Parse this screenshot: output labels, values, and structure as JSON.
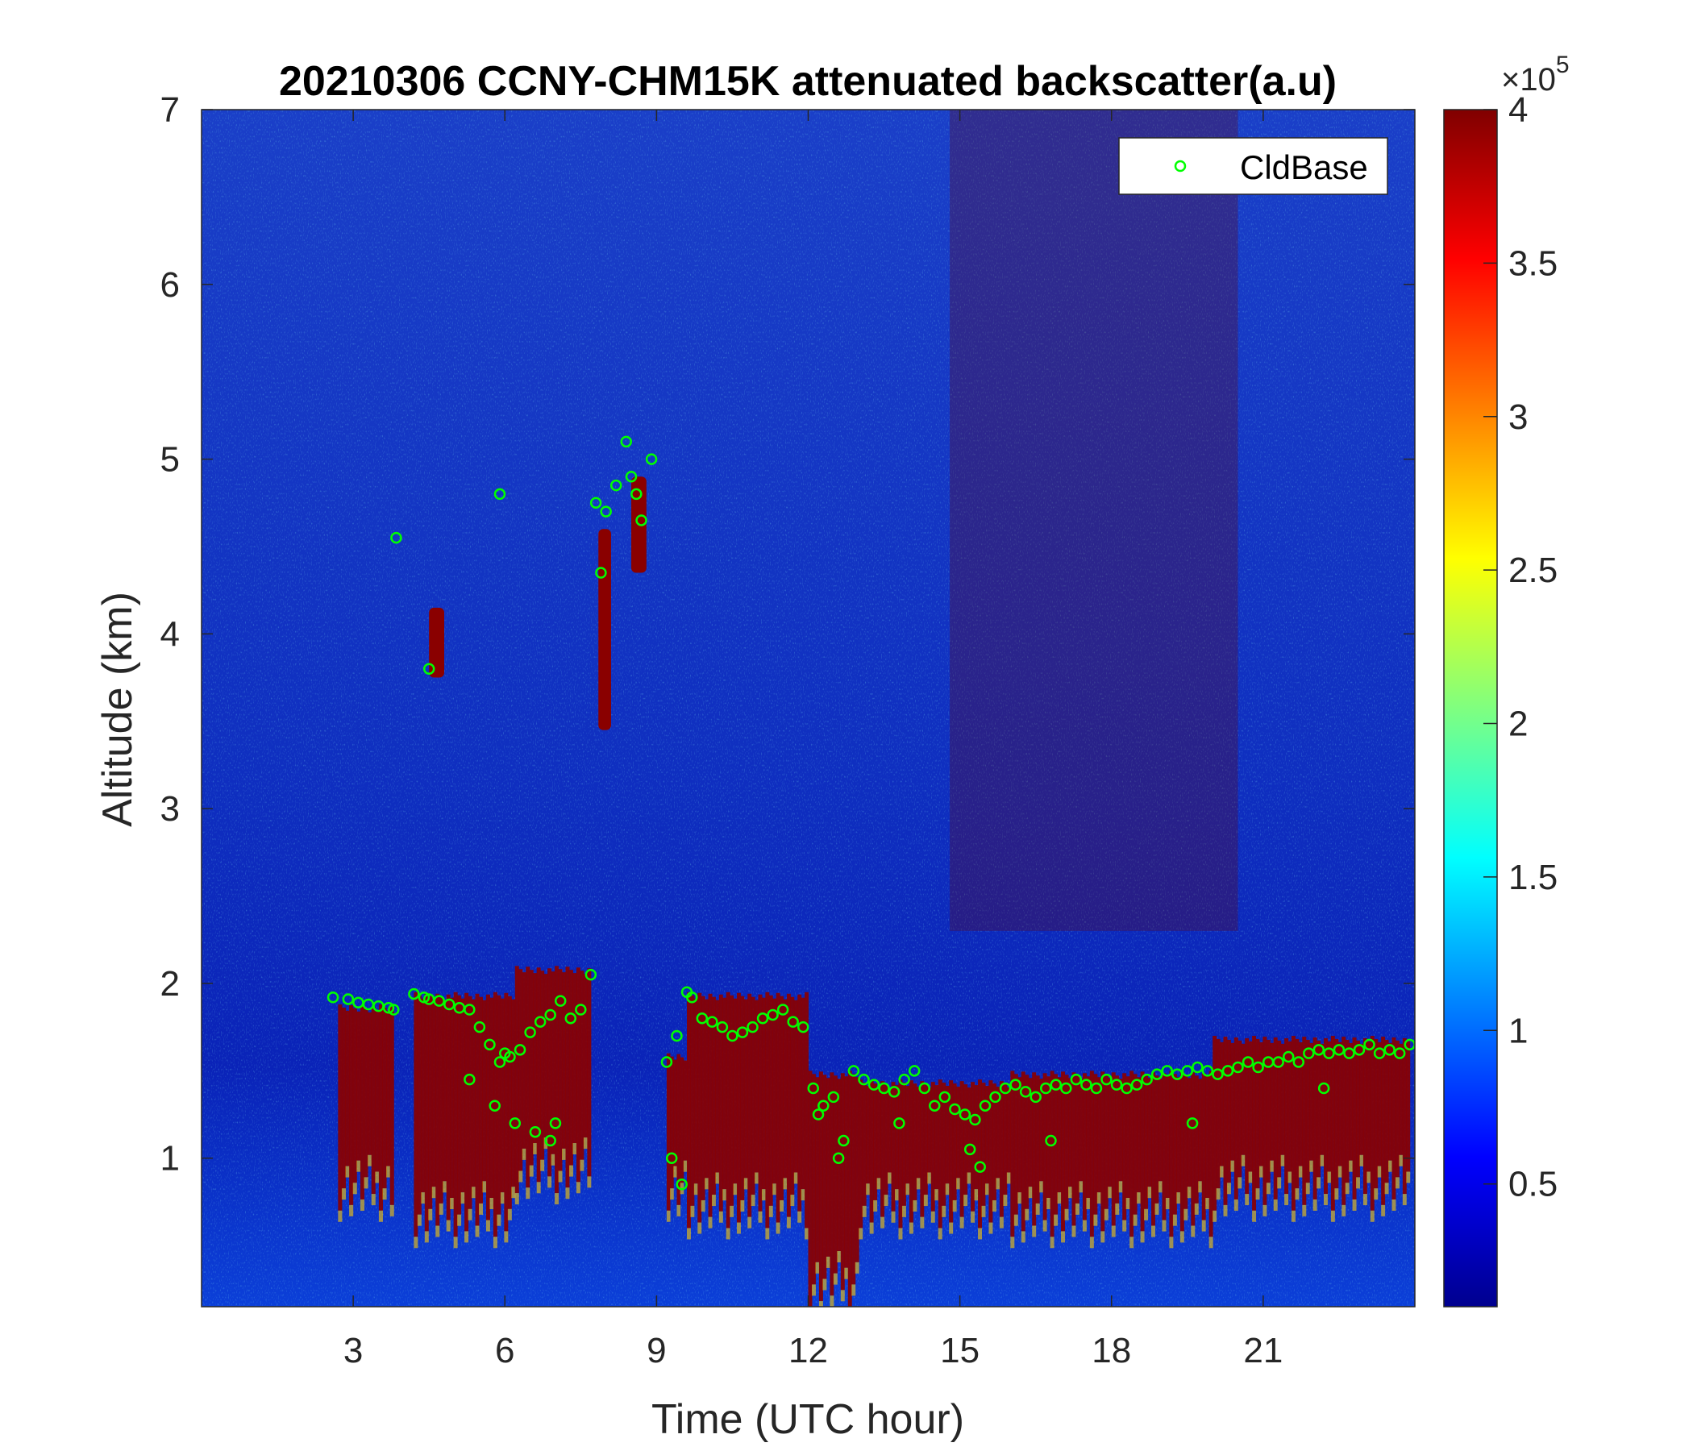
{
  "chart_data": {
    "type": "heatmap",
    "title": "20210306 CCNY-CHM15K attenuated backscatter(a.u)",
    "xlabel": "Time (UTC hour)",
    "ylabel": "Altitude (km)",
    "xlim": [
      0,
      24
    ],
    "ylim": [
      0.15,
      7
    ],
    "xticks": [
      3,
      6,
      9,
      12,
      15,
      18,
      21
    ],
    "yticks": [
      1,
      2,
      3,
      4,
      5,
      6,
      7
    ],
    "colorbar": {
      "label": "",
      "scale_label": "×10^5",
      "scale_base": "×10",
      "scale_exp": "5",
      "range": [
        10000,
        400000
      ],
      "ticks": [
        0.5,
        1,
        1.5,
        2,
        2.5,
        3,
        3.5,
        4
      ],
      "tick_labels": [
        "0.5",
        "1",
        "1.5",
        "2",
        "2.5",
        "3",
        "3.5",
        "4"
      ],
      "colormap": "jet"
    },
    "series": [
      {
        "name": "CldBase",
        "marker": "circle",
        "color": "#00ff00",
        "x": [
          2.6,
          2.9,
          3.1,
          3.3,
          3.5,
          3.7,
          3.8,
          4.2,
          4.4,
          4.5,
          4.7,
          4.9,
          5.1,
          5.3,
          5.5,
          5.7,
          5.9,
          6.0,
          6.1,
          6.3,
          6.5,
          6.7,
          6.9,
          7.1,
          7.3,
          7.5,
          7.7,
          3.85,
          4.5,
          5.9,
          7.8,
          7.9,
          8.0,
          8.2,
          8.4,
          8.5,
          8.6,
          8.7,
          8.9,
          9.2,
          9.4,
          9.6,
          9.7,
          9.9,
          10.1,
          10.3,
          10.5,
          10.7,
          10.9,
          11.1,
          11.3,
          11.5,
          11.7,
          11.9,
          12.1,
          12.3,
          12.5,
          12.7,
          12.9,
          13.1,
          13.3,
          13.5,
          13.7,
          13.9,
          14.1,
          14.3,
          14.5,
          14.7,
          14.9,
          15.1,
          15.3,
          15.5,
          15.7,
          15.9,
          16.1,
          16.3,
          16.5,
          16.7,
          16.9,
          17.1,
          17.3,
          17.5,
          17.7,
          17.9,
          18.1,
          18.3,
          18.5,
          18.7,
          18.9,
          19.1,
          19.3,
          19.5,
          19.7,
          19.9,
          20.1,
          20.3,
          20.5,
          20.7,
          20.9,
          21.1,
          21.3,
          21.5,
          21.7,
          21.9,
          22.1,
          22.3,
          22.5,
          22.7,
          22.9,
          23.1,
          23.3,
          23.5,
          23.7,
          23.9,
          5.3,
          5.8,
          6.2,
          6.6,
          6.9,
          7.0,
          9.3,
          9.5,
          12.2,
          12.6,
          13.8,
          15.2,
          15.4,
          16.8,
          19.6,
          22.2
        ],
        "y": [
          1.92,
          1.91,
          1.89,
          1.88,
          1.87,
          1.86,
          1.85,
          1.94,
          1.92,
          1.91,
          1.9,
          1.88,
          1.86,
          1.85,
          1.75,
          1.65,
          1.55,
          1.6,
          1.58,
          1.62,
          1.72,
          1.78,
          1.82,
          1.9,
          1.8,
          1.85,
          2.05,
          4.55,
          3.8,
          4.8,
          4.75,
          4.35,
          4.7,
          4.85,
          5.1,
          4.9,
          4.8,
          4.65,
          5.0,
          1.55,
          1.7,
          1.95,
          1.92,
          1.8,
          1.78,
          1.75,
          1.7,
          1.72,
          1.75,
          1.8,
          1.82,
          1.85,
          1.78,
          1.75,
          1.4,
          1.3,
          1.35,
          1.1,
          1.5,
          1.45,
          1.42,
          1.4,
          1.38,
          1.45,
          1.5,
          1.4,
          1.3,
          1.35,
          1.28,
          1.25,
          1.22,
          1.3,
          1.35,
          1.4,
          1.42,
          1.38,
          1.35,
          1.4,
          1.42,
          1.4,
          1.45,
          1.42,
          1.4,
          1.45,
          1.42,
          1.4,
          1.42,
          1.45,
          1.48,
          1.5,
          1.48,
          1.5,
          1.52,
          1.5,
          1.48,
          1.5,
          1.52,
          1.55,
          1.52,
          1.55,
          1.55,
          1.58,
          1.55,
          1.6,
          1.62,
          1.6,
          1.62,
          1.6,
          1.62,
          1.65,
          1.6,
          1.62,
          1.6,
          1.65,
          1.45,
          1.3,
          1.2,
          1.15,
          1.1,
          1.2,
          1.0,
          0.85,
          1.25,
          1.0,
          1.2,
          1.05,
          0.95,
          1.1,
          1.2,
          1.4
        ]
      }
    ],
    "legend": {
      "position": "top-right",
      "entries": [
        "CldBase"
      ]
    }
  }
}
